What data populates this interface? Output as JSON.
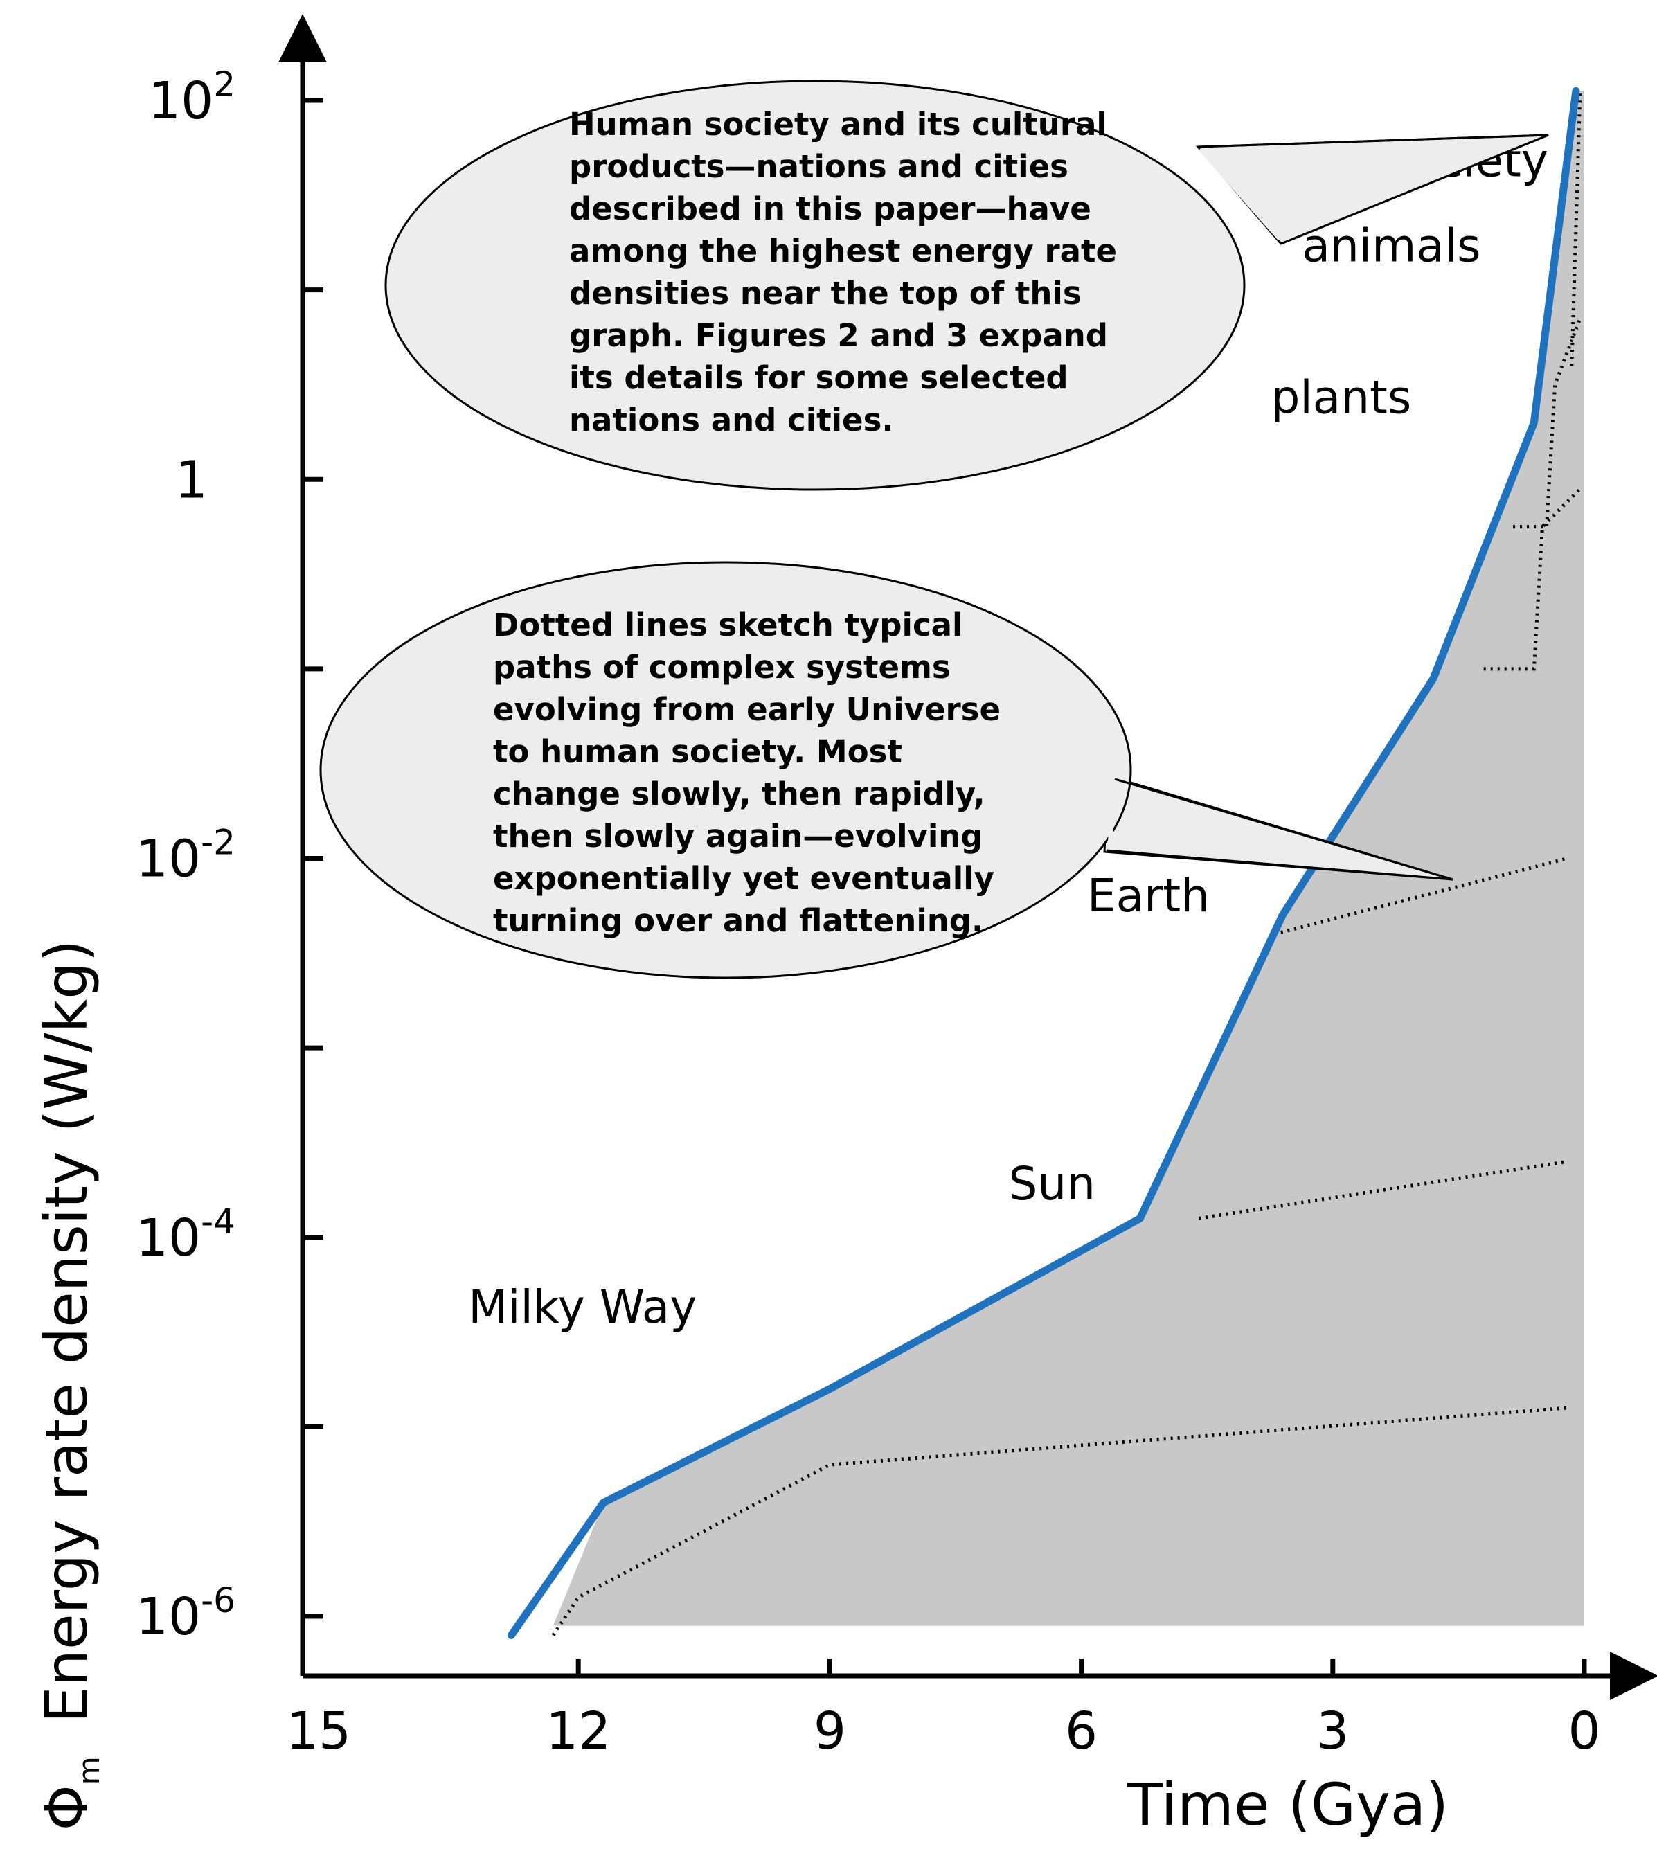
{
  "chart_data": {
    "type": "line",
    "xlabel": "Time (Gya)",
    "ylabel": "Energy rate density  (W/kg)",
    "ylabel_symbol": "Φ",
    "ylabel_symbol_sub": "m",
    "x_reversed": true,
    "xlim": [
      15,
      0
    ],
    "ylim_exponent": [
      -6.2,
      2.4
    ],
    "y_scale": "log",
    "x_ticks": [
      {
        "value": 15,
        "label": "15"
      },
      {
        "value": 12,
        "label": "12"
      },
      {
        "value": 9,
        "label": "9"
      },
      {
        "value": 6,
        "label": "6"
      },
      {
        "value": 3,
        "label": "3"
      },
      {
        "value": 0,
        "label": "0"
      }
    ],
    "y_ticks": [
      {
        "exp": 2,
        "base": "10",
        "sup": "2",
        "label": ""
      },
      {
        "exp": 1,
        "base": "",
        "sup": "",
        "label": ""
      },
      {
        "exp": 0,
        "base": "",
        "sup": "",
        "label": "1"
      },
      {
        "exp": -1,
        "base": "",
        "sup": "",
        "label": ""
      },
      {
        "exp": -2,
        "base": "10",
        "sup": "-2",
        "label": ""
      },
      {
        "exp": -3,
        "base": "",
        "sup": "",
        "label": ""
      },
      {
        "exp": -4,
        "base": "10",
        "sup": "-4",
        "label": ""
      },
      {
        "exp": -5,
        "base": "",
        "sup": "",
        "label": ""
      },
      {
        "exp": -6,
        "base": "10",
        "sup": "-6",
        "label": ""
      }
    ],
    "series": [
      {
        "color": "#1f72bd",
        "points": [
          {
            "x": 12.8,
            "y_exp": -6.1
          },
          {
            "x": 11.7,
            "y_exp": -5.4
          },
          {
            "x": 9.0,
            "y_exp": -4.8
          },
          {
            "x": 5.3,
            "y_exp": -3.9
          },
          {
            "x": 3.6,
            "y_exp": -2.3
          },
          {
            "x": 1.8,
            "y_exp": -1.05
          },
          {
            "x": 0.6,
            "y_exp": 0.3
          },
          {
            "x": 0.1,
            "y_exp": 2.05
          }
        ]
      }
    ],
    "shaded_area": {
      "color": "#c8c8c8",
      "floor_exp": -6.05,
      "right_x": 0.0
    },
    "dotted_paths": [
      [
        {
          "x": 12.3,
          "y_exp": -6.1
        },
        {
          "x": 12.0,
          "y_exp": -5.9
        },
        {
          "x": 9.0,
          "y_exp": -5.2
        },
        {
          "x": 0.2,
          "y_exp": -4.9
        }
      ],
      [
        {
          "x": 4.6,
          "y_exp": -3.9
        },
        {
          "x": 0.2,
          "y_exp": -3.6
        }
      ],
      [
        {
          "x": 3.7,
          "y_exp": -2.4
        },
        {
          "x": 0.2,
          "y_exp": -2.0
        }
      ],
      [
        {
          "x": 1.2,
          "y_exp": -1.0
        },
        {
          "x": 0.6,
          "y_exp": -1.0
        },
        {
          "x": 0.5,
          "y_exp": -0.25
        },
        {
          "x": 0.05,
          "y_exp": -0.05
        }
      ],
      [
        {
          "x": 0.85,
          "y_exp": -0.25
        },
        {
          "x": 0.45,
          "y_exp": -0.25
        },
        {
          "x": 0.35,
          "y_exp": 0.5
        },
        {
          "x": 0.05,
          "y_exp": 0.85
        }
      ],
      [
        {
          "x": 0.15,
          "y_exp": 0.6
        },
        {
          "x": 0.05,
          "y_exp": 2.05
        }
      ]
    ],
    "region_labels": [
      {
        "text": "society",
        "x": 1.4,
        "y_exp": 1.6
      },
      {
        "text": "animals",
        "x": 2.3,
        "y_exp": 1.15
      },
      {
        "text": "plants",
        "x": 2.9,
        "y_exp": 0.35
      },
      {
        "text": "Earth",
        "x": 5.2,
        "y_exp": -2.28
      },
      {
        "text": "Sun",
        "x": 6.35,
        "y_exp": -3.8
      },
      {
        "text": "Milky Way",
        "x": 11.95,
        "y_exp": -4.45
      }
    ],
    "annotations": [
      {
        "lines": [
          "Human society and its cultural",
          "products—nations and cities",
          "described in this paper—have",
          "among the highest energy rate",
          "densities near the top of this",
          "graph. Figures 2 and 3 expand",
          "its details for some selected",
          "nations and cities."
        ]
      },
      {
        "lines": [
          "Dotted lines sketch typical",
          "paths of complex systems",
          "evolving from early Universe",
          "to human society. Most",
          "change slowly, then rapidly,",
          "then slowly again—evolving",
          "exponentially yet eventually",
          "turning over and flattening."
        ]
      }
    ]
  }
}
